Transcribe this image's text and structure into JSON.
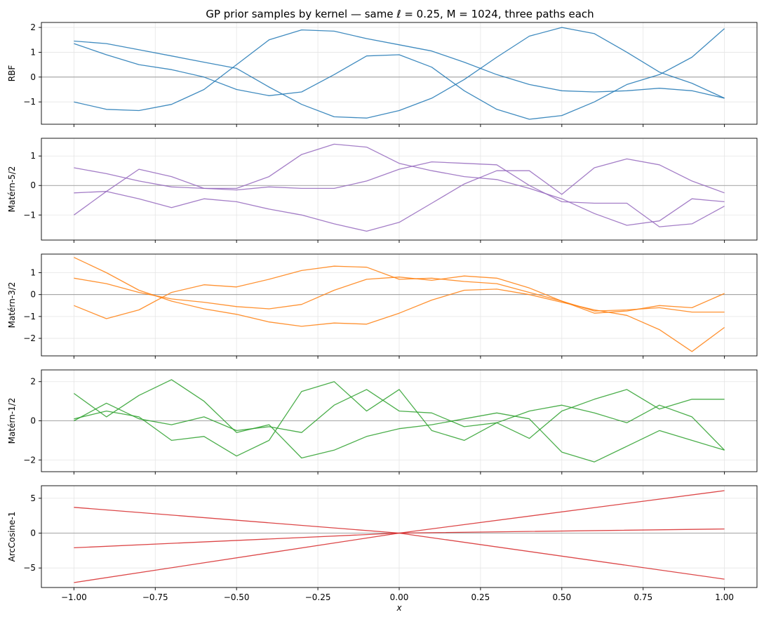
{
  "figure_title": "GP prior samples by kernel — same ℓ = 0.25, M = 1024, three paths each",
  "chart_data": [
    {
      "type": "line",
      "ylabel": "RBF",
      "color": "#1f77b4",
      "xlim": [
        -1.1,
        1.1
      ],
      "ylim": [
        -1.9,
        2.2
      ],
      "yticks": [
        -1,
        0,
        1,
        2
      ],
      "grid": true,
      "zero_line": true,
      "show_xticklabels": false,
      "series": [
        {
          "x": [
            -1,
            -0.9,
            -0.8,
            -0.7,
            -0.6,
            -0.5,
            -0.4,
            -0.3,
            -0.2,
            -0.1,
            0,
            0.1,
            0.2,
            0.3,
            0.4,
            0.5,
            0.6,
            0.7,
            0.8,
            0.9,
            1
          ],
          "y": [
            -1.0,
            -1.3,
            -1.35,
            -1.1,
            -0.5,
            0.5,
            1.5,
            1.9,
            1.85,
            1.55,
            1.3,
            1.05,
            0.6,
            0.1,
            -0.3,
            -0.55,
            -0.6,
            -0.55,
            -0.45,
            -0.55,
            -0.85
          ]
        },
        {
          "x": [
            -1,
            -0.9,
            -0.8,
            -0.7,
            -0.6,
            -0.5,
            -0.4,
            -0.3,
            -0.2,
            -0.1,
            0,
            0.1,
            0.2,
            0.3,
            0.4,
            0.5,
            0.6,
            0.7,
            0.8,
            0.9,
            1
          ],
          "y": [
            1.45,
            1.35,
            1.1,
            0.85,
            0.6,
            0.35,
            -0.4,
            -1.1,
            -1.6,
            -1.65,
            -1.35,
            -0.85,
            -0.1,
            0.8,
            1.65,
            2.0,
            1.75,
            1.0,
            0.2,
            -0.25,
            -0.85
          ]
        },
        {
          "x": [
            -1,
            -0.9,
            -0.8,
            -0.7,
            -0.6,
            -0.5,
            -0.4,
            -0.3,
            -0.2,
            -0.1,
            0,
            0.1,
            0.2,
            0.3,
            0.4,
            0.5,
            0.6,
            0.7,
            0.8,
            0.9,
            1
          ],
          "y": [
            1.35,
            0.9,
            0.5,
            0.3,
            0.0,
            -0.5,
            -0.75,
            -0.6,
            0.1,
            0.85,
            0.9,
            0.4,
            -0.55,
            -1.3,
            -1.7,
            -1.55,
            -1.0,
            -0.3,
            0.1,
            0.8,
            1.95
          ]
        }
      ]
    },
    {
      "type": "line",
      "ylabel": "Matérn-5/2",
      "color": "#9467bd",
      "xlim": [
        -1.1,
        1.1
      ],
      "ylim": [
        -1.85,
        1.6
      ],
      "yticks": [
        -1,
        0,
        1
      ],
      "grid": true,
      "zero_line": true,
      "show_xticklabels": false,
      "series": [
        {
          "x": [
            -1,
            -0.9,
            -0.8,
            -0.7,
            -0.6,
            -0.5,
            -0.4,
            -0.3,
            -0.2,
            -0.1,
            0,
            0.1,
            0.2,
            0.3,
            0.4,
            0.5,
            0.6,
            0.7,
            0.8,
            0.9,
            1
          ],
          "y": [
            0.6,
            0.4,
            0.15,
            -0.05,
            -0.1,
            -0.1,
            0.3,
            1.05,
            1.4,
            1.3,
            0.75,
            0.5,
            0.3,
            0.2,
            -0.1,
            -0.45,
            -0.95,
            -1.35,
            -1.2,
            -0.45,
            -0.55
          ]
        },
        {
          "x": [
            -1,
            -0.9,
            -0.8,
            -0.7,
            -0.6,
            -0.5,
            -0.4,
            -0.3,
            -0.2,
            -0.1,
            0,
            0.1,
            0.2,
            0.3,
            0.4,
            0.5,
            0.6,
            0.7,
            0.8,
            0.9,
            1
          ],
          "y": [
            -1.0,
            -0.2,
            0.55,
            0.3,
            -0.1,
            -0.15,
            -0.05,
            -0.1,
            -0.1,
            0.15,
            0.55,
            0.8,
            0.75,
            0.7,
            0.0,
            -0.55,
            -0.6,
            -0.6,
            -1.4,
            -1.3,
            -0.7
          ]
        },
        {
          "x": [
            -1,
            -0.9,
            -0.8,
            -0.7,
            -0.6,
            -0.5,
            -0.4,
            -0.3,
            -0.2,
            -0.1,
            0,
            0.1,
            0.2,
            0.3,
            0.4,
            0.5,
            0.6,
            0.7,
            0.8,
            0.9,
            1
          ],
          "y": [
            -0.25,
            -0.2,
            -0.45,
            -0.75,
            -0.45,
            -0.55,
            -0.8,
            -1.0,
            -1.3,
            -1.55,
            -1.25,
            -0.6,
            0.05,
            0.5,
            0.5,
            -0.3,
            0.6,
            0.9,
            0.7,
            0.15,
            -0.25
          ]
        }
      ]
    },
    {
      "type": "line",
      "ylabel": "Matérn-3/2",
      "color": "#ff7f0e",
      "xlim": [
        -1.1,
        1.1
      ],
      "ylim": [
        -2.8,
        1.85
      ],
      "yticks": [
        -2,
        -1,
        0,
        1
      ],
      "grid": true,
      "zero_line": true,
      "show_xticklabels": false,
      "series": [
        {
          "x": [
            -1,
            -0.9,
            -0.8,
            -0.7,
            -0.6,
            -0.5,
            -0.4,
            -0.3,
            -0.2,
            -0.1,
            0,
            0.1,
            0.2,
            0.3,
            0.4,
            0.5,
            0.6,
            0.7,
            0.8,
            0.9,
            1
          ],
          "y": [
            1.7,
            1.0,
            0.2,
            -0.3,
            -0.65,
            -0.9,
            -1.25,
            -1.45,
            -1.3,
            -1.35,
            -0.85,
            -0.25,
            0.2,
            0.25,
            0.0,
            -0.35,
            -0.7,
            -0.95,
            -1.6,
            -2.6,
            -1.5
          ]
        },
        {
          "x": [
            -1,
            -0.9,
            -0.8,
            -0.7,
            -0.6,
            -0.5,
            -0.4,
            -0.3,
            -0.2,
            -0.1,
            0,
            0.1,
            0.2,
            0.3,
            0.4,
            0.5,
            0.6,
            0.7,
            0.8,
            0.9,
            1
          ],
          "y": [
            0.75,
            0.5,
            0.1,
            -0.2,
            -0.35,
            -0.55,
            -0.65,
            -0.45,
            0.2,
            0.7,
            0.8,
            0.65,
            0.85,
            0.75,
            0.3,
            -0.3,
            -0.75,
            -0.7,
            -0.6,
            -0.8,
            -0.8
          ]
        },
        {
          "x": [
            -1,
            -0.9,
            -0.8,
            -0.7,
            -0.6,
            -0.5,
            -0.4,
            -0.3,
            -0.2,
            -0.1,
            0,
            0.1,
            0.2,
            0.3,
            0.4,
            0.5,
            0.6,
            0.7,
            0.8,
            0.9,
            1
          ],
          "y": [
            -0.5,
            -1.1,
            -0.7,
            0.1,
            0.45,
            0.35,
            0.7,
            1.1,
            1.3,
            1.25,
            0.7,
            0.75,
            0.6,
            0.5,
            0.1,
            -0.3,
            -0.85,
            -0.75,
            -0.5,
            -0.6,
            0.05
          ]
        }
      ]
    },
    {
      "type": "line",
      "ylabel": "Matérn-1/2",
      "color": "#2ca02c",
      "xlim": [
        -1.1,
        1.1
      ],
      "ylim": [
        -2.6,
        2.6
      ],
      "yticks": [
        -2,
        0,
        2
      ],
      "grid": true,
      "zero_line": true,
      "show_xticklabels": false,
      "series": [
        {
          "x": [
            -1,
            -0.9,
            -0.8,
            -0.7,
            -0.6,
            -0.5,
            -0.4,
            -0.3,
            -0.2,
            -0.1,
            0,
            0.1,
            0.2,
            0.3,
            0.4,
            0.5,
            0.6,
            0.7,
            0.8,
            0.9,
            1
          ],
          "y": [
            1.4,
            0.2,
            1.3,
            2.1,
            1.0,
            -0.6,
            -0.2,
            -1.9,
            -1.5,
            -0.8,
            -0.4,
            -0.2,
            0.1,
            0.4,
            0.1,
            -1.6,
            -2.1,
            -1.3,
            -0.5,
            -1.0,
            -1.5
          ]
        },
        {
          "x": [
            -1,
            -0.9,
            -0.8,
            -0.7,
            -0.6,
            -0.5,
            -0.4,
            -0.3,
            -0.2,
            -0.1,
            0,
            0.1,
            0.2,
            0.3,
            0.4,
            0.5,
            0.6,
            0.7,
            0.8,
            0.9,
            1
          ],
          "y": [
            0.1,
            0.5,
            0.2,
            -1.0,
            -0.8,
            -1.8,
            -1.0,
            1.5,
            2.0,
            0.5,
            1.6,
            -0.5,
            -1.0,
            -0.1,
            -0.9,
            0.5,
            1.1,
            1.6,
            0.6,
            1.1,
            1.1
          ]
        },
        {
          "x": [
            -1,
            -0.9,
            -0.8,
            -0.7,
            -0.6,
            -0.5,
            -0.4,
            -0.3,
            -0.2,
            -0.1,
            0,
            0.1,
            0.2,
            0.3,
            0.4,
            0.5,
            0.6,
            0.7,
            0.8,
            0.9,
            1
          ],
          "y": [
            0.0,
            0.9,
            0.1,
            -0.2,
            0.2,
            -0.5,
            -0.3,
            -0.6,
            0.8,
            1.6,
            0.5,
            0.4,
            -0.3,
            -0.1,
            0.5,
            0.8,
            0.4,
            -0.1,
            0.8,
            0.2,
            -1.5
          ]
        }
      ]
    },
    {
      "type": "line",
      "ylabel": "ArcCosine-1",
      "xlabel": "x",
      "color": "#d62728",
      "xlim": [
        -1.1,
        1.1
      ],
      "ylim": [
        -7.8,
        6.8
      ],
      "yticks": [
        -5,
        0,
        5
      ],
      "xticks": [
        -1.0,
        -0.75,
        -0.5,
        -0.25,
        0.0,
        0.25,
        0.5,
        0.75,
        1.0
      ],
      "xticklabels": [
        "−1.00",
        "−0.75",
        "−0.50",
        "−0.25",
        "0.00",
        "0.25",
        "0.50",
        "0.75",
        "1.00"
      ],
      "grid": true,
      "zero_line": true,
      "show_xticklabels": true,
      "series": [
        {
          "x": [
            -1,
            0,
            1
          ],
          "y": [
            3.7,
            0,
            -6.6
          ]
        },
        {
          "x": [
            -1,
            0,
            1
          ],
          "y": [
            -2.1,
            0,
            0.6
          ]
        },
        {
          "x": [
            -1,
            0,
            1
          ],
          "y": [
            -7.1,
            0,
            6.1
          ]
        }
      ]
    }
  ]
}
